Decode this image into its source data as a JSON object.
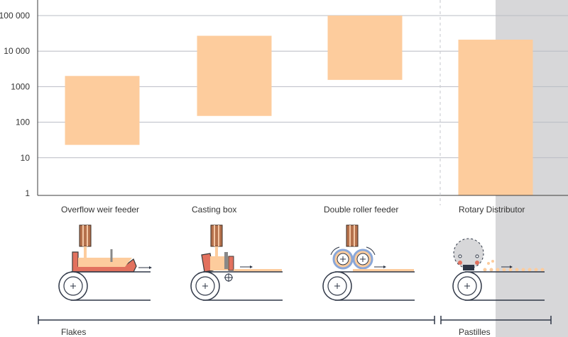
{
  "chart_data": {
    "type": "floating-bar",
    "scale": "log",
    "ylim": [
      1,
      100000
    ],
    "y_ticks": [
      "1",
      "10",
      "100",
      "1000",
      "10 000",
      "100 000"
    ],
    "y_tick_values": [
      1,
      10,
      100,
      1000,
      10000,
      100000
    ],
    "categories": [
      "Overflow weir feeder",
      "Casting box",
      "Double roller feeder",
      "Rotary Distributor"
    ],
    "ranges": [
      [
        23,
        2000
      ],
      [
        150,
        27000
      ],
      [
        1550,
        100000
      ],
      [
        1,
        21000
      ]
    ],
    "bar_color": "#fdcc9d",
    "groups": [
      {
        "label": "Flakes",
        "categories": [
          "Overflow weir feeder",
          "Casting box",
          "Double roller feeder"
        ]
      },
      {
        "label": "Pastilles",
        "categories": [
          "Rotary Distributor"
        ]
      }
    ],
    "title": "",
    "xlabel": "",
    "ylabel": ""
  },
  "colors": {
    "bar": "#fdcc9d",
    "grid": "#b9bcc4",
    "axis": "#3c3c3c",
    "panel": "#d7d7d9",
    "nozzle": "#b5714c",
    "belt": "#2e3646",
    "roller_ring": "#8aa7d8"
  }
}
